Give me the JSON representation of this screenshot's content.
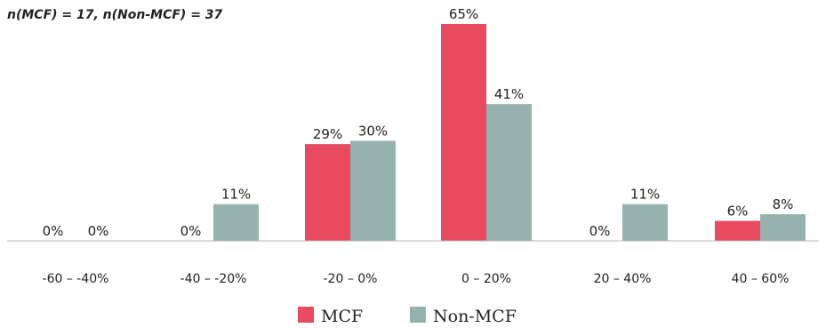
{
  "chart_data": {
    "type": "bar",
    "annotation": "n(MCF) = 17, n(Non-MCF) = 37",
    "categories": [
      "-60 – -40%",
      "-40 – -20%",
      "-20 – 0%",
      "0 – 20%",
      "20 – 40%",
      "40 – 60%"
    ],
    "series": [
      {
        "name": "MCF",
        "color": "#e84a5f",
        "values": [
          0,
          0,
          29,
          65,
          0,
          6
        ],
        "labels": [
          "0%",
          "0%",
          "29%",
          "65%",
          "0%",
          "6%"
        ]
      },
      {
        "name": "Non-MCF",
        "color": "#96b2ae",
        "values": [
          0,
          11,
          30,
          41,
          11,
          8
        ],
        "labels": [
          "0%",
          "11%",
          "30%",
          "41%",
          "11%",
          "8%"
        ]
      }
    ],
    "ylim": [
      0,
      65
    ],
    "grid": false,
    "legend": "bottom-center"
  }
}
